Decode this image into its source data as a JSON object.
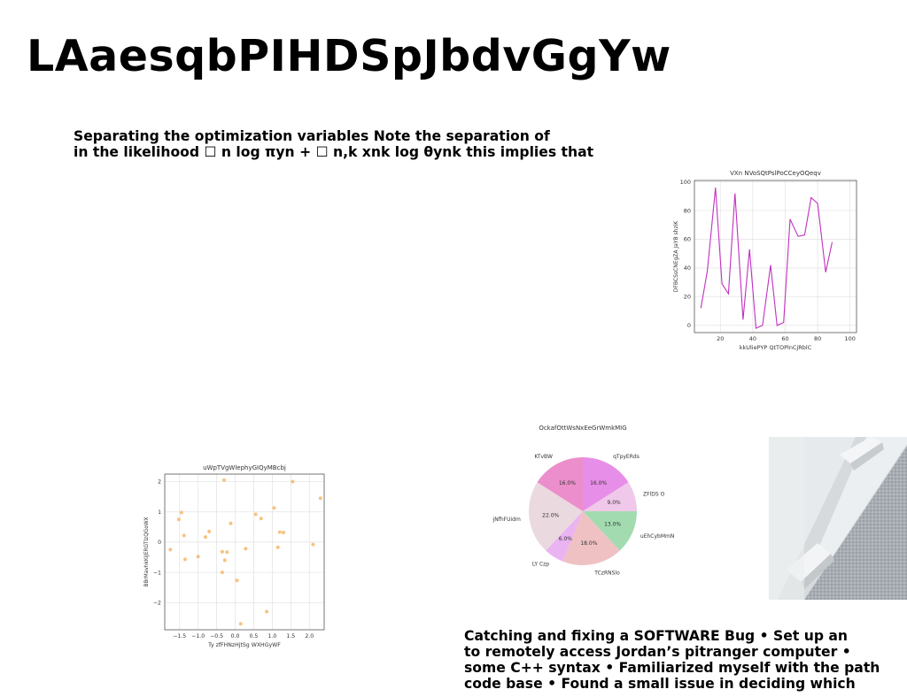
{
  "title": "LAaesqbPIHDSpJbdvGgYw",
  "paragraph1": {
    "lines": [
      "Separating the optimization variables Note the separation of",
      "in the likelihood ☐ n log πyn + ☐ n,k xnk log θynk this implies that"
    ]
  },
  "paragraph2": {
    "lines": [
      "Catching and fixing a SOFTWARE Bug • Set up an",
      "to remotely access Jordan’s pitranger computer •",
      "some C++ syntax • Familiarized myself with the path",
      "code base • Found a small issue in deciding which"
    ]
  },
  "chart_data": [
    {
      "type": "line",
      "title": "VXn NVoSQtPslPoCCeyOQeqv",
      "xlabel": "kkUliePYP QtTOPlnCjRblC",
      "ylabel": "DFBCSsCNEgZA JaYB shziK",
      "xlim": [
        4,
        104
      ],
      "ylim": [
        -5,
        101
      ],
      "xticks": [
        20,
        40,
        60,
        80,
        100
      ],
      "yticks": [
        0,
        20,
        40,
        60,
        80,
        100
      ],
      "grid": true,
      "color": "#c030c0",
      "x": [
        8,
        12,
        17,
        21,
        25,
        29,
        34,
        38,
        42,
        46,
        51,
        55,
        59,
        63,
        68,
        72,
        76,
        80,
        85,
        89,
        93,
        97
      ],
      "y": [
        12,
        38,
        96,
        29,
        22,
        92,
        4,
        53,
        -2,
        0,
        42,
        0,
        2,
        74,
        62,
        63,
        89,
        85,
        37,
        58,
        null,
        null
      ]
    },
    {
      "type": "scatter",
      "title": "uWpTVgWlephyGIQyMBcbj",
      "xlabel": "Ty zfFHNzHjtSg WXHGyWF",
      "ylabel": "BBrMavhkKiJERGTIzQGoWX",
      "xlim": [
        -1.9,
        2.4
      ],
      "ylim": [
        -2.9,
        2.25
      ],
      "xticks": [
        -1.5,
        -1.0,
        -0.5,
        0.0,
        0.5,
        1.0,
        1.5,
        2.0
      ],
      "xticklabels": [
        "−1.5",
        "−1.0",
        "−0.5",
        "0.0",
        "0.5",
        "1.0",
        "1.5",
        "2.0"
      ],
      "yticks": [
        -2,
        -1,
        0,
        1,
        2
      ],
      "yticklabels": [
        "−2",
        "−1",
        "0",
        "1",
        "2"
      ],
      "grid": true,
      "color": "#f5b96a",
      "points": [
        [
          -1.75,
          -0.25
        ],
        [
          -1.52,
          0.75
        ],
        [
          -1.45,
          0.98
        ],
        [
          -1.38,
          0.22
        ],
        [
          -1.35,
          -0.57
        ],
        [
          -1.0,
          -0.48
        ],
        [
          -0.8,
          0.17
        ],
        [
          -0.7,
          0.35
        ],
        [
          -0.35,
          -0.32
        ],
        [
          -0.3,
          2.05
        ],
        [
          -0.28,
          -0.6
        ],
        [
          -0.22,
          -0.33
        ],
        [
          -0.35,
          -1.0
        ],
        [
          -0.12,
          0.62
        ],
        [
          0.05,
          -1.27
        ],
        [
          0.15,
          -2.7
        ],
        [
          0.28,
          -0.22
        ],
        [
          0.55,
          0.92
        ],
        [
          0.7,
          0.78
        ],
        [
          0.85,
          -2.3
        ],
        [
          1.05,
          1.13
        ],
        [
          1.15,
          -0.17
        ],
        [
          1.2,
          0.33
        ],
        [
          1.3,
          0.32
        ],
        [
          1.55,
          2.0
        ],
        [
          2.1,
          -0.08
        ],
        [
          2.3,
          1.45
        ]
      ]
    },
    {
      "type": "pie",
      "title": "OckafOttWsNxEeGrWmkMIG",
      "slices": [
        {
          "label": "qTpyERds",
          "value": 16.0,
          "pct": "16.0%",
          "color": "#e78ee8"
        },
        {
          "label": "ZFlDS O",
          "value": 9.0,
          "pct": "9.0%",
          "color": "#f0c8ea"
        },
        {
          "label": "uEhCybMmN",
          "value": 13.0,
          "pct": "13.0%",
          "color": "#a3dbb0"
        },
        {
          "label": "TCzRNSlo",
          "value": 18.0,
          "pct": "18.0%",
          "color": "#efc1c3"
        },
        {
          "label": "LY Czp",
          "value": 6.0,
          "pct": "6.0%",
          "color": "#eab3f2"
        },
        {
          "label": "bjNfhFUidm",
          "value": 22.0,
          "pct": "22.0%",
          "color": "#ead9de"
        },
        {
          "label": "KTvBW",
          "value": 16.0,
          "pct": "16.0%",
          "color": "#ec8ecb"
        }
      ]
    }
  ]
}
